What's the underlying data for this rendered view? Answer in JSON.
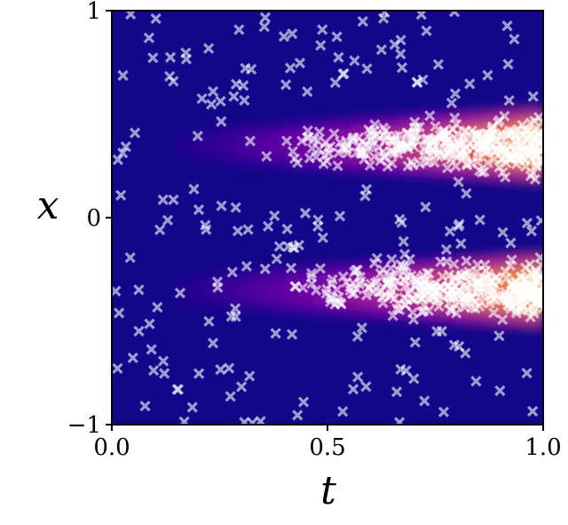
{
  "chart_data": {
    "type": "heatmap",
    "title": "",
    "xlabel": "t",
    "ylabel": "x",
    "xlim": [
      0.0,
      1.0
    ],
    "ylim": [
      -1,
      1
    ],
    "xticks": [
      {
        "value": 0.0,
        "label": "0.0"
      },
      {
        "value": 0.5,
        "label": "0.5"
      },
      {
        "value": 1.0,
        "label": "1.0"
      }
    ],
    "yticks": [
      {
        "value": -1,
        "label": "−1"
      },
      {
        "value": 0,
        "label": "0"
      },
      {
        "value": 1,
        "label": "1"
      }
    ],
    "colormap": "plasma",
    "field": {
      "description_bands": [
        {
          "center_x": 0.35,
          "intensity_growth": "increases with t"
        },
        {
          "center_x": -0.35,
          "intensity_growth": "increases with t"
        }
      ],
      "background_color": "#0d0887",
      "peak_color": "#f0f921"
    },
    "grid": false,
    "scatter_series": {
      "marker": "x",
      "color": "#ffffff",
      "opacity": 0.6,
      "approx_count": 900,
      "clusters": [
        {
          "x_center": 0.35,
          "t_from": 0.4,
          "t_to": 1.0
        },
        {
          "x_center": -0.35,
          "t_from": 0.4,
          "t_to": 1.0
        }
      ]
    }
  }
}
